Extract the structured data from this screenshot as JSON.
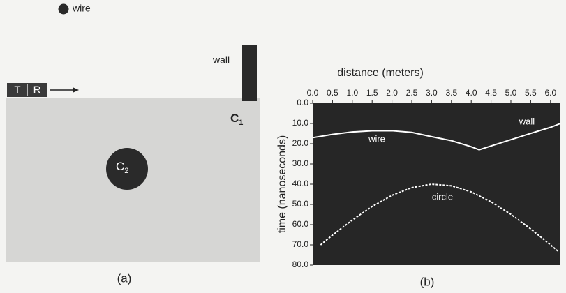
{
  "diagram": {
    "wire": "wire",
    "wall": "wall",
    "transmitter": "T",
    "receiver": "R",
    "c1": "C",
    "c1_sub": "1",
    "c2": "C",
    "c2_sub": "2"
  },
  "captions": [
    "(a)",
    "(b)"
  ],
  "chart_data": {
    "type": "line",
    "xlabel": "distance (meters)",
    "ylabel": "time (nanoseconds)",
    "xlim": [
      0,
      6.25
    ],
    "ylim": [
      80,
      0
    ],
    "xticks": [
      {
        "value": 0,
        "label": "0.0"
      },
      {
        "value": 0.5,
        "label": "0.5"
      },
      {
        "value": 1,
        "label": "1.0"
      },
      {
        "value": 1.5,
        "label": "1.5"
      },
      {
        "value": 2,
        "label": "2.0"
      },
      {
        "value": 2.5,
        "label": "2.5"
      },
      {
        "value": 3,
        "label": "3.0"
      },
      {
        "value": 3.5,
        "label": "3.5"
      },
      {
        "value": 4,
        "label": "4.0"
      },
      {
        "value": 4.5,
        "label": "4.5"
      },
      {
        "value": 5,
        "label": "5.0"
      },
      {
        "value": 5.5,
        "label": "5.5"
      },
      {
        "value": 6,
        "label": "6.0"
      }
    ],
    "yticks": [
      {
        "value": 0,
        "label": "0.0"
      },
      {
        "value": 10,
        "label": "10.0"
      },
      {
        "value": 20,
        "label": "20.0"
      },
      {
        "value": 30,
        "label": "30.0"
      },
      {
        "value": 40,
        "label": "40.0"
      },
      {
        "value": 50,
        "label": "50.0"
      },
      {
        "value": 60,
        "label": "60.0"
      },
      {
        "value": 70,
        "label": "70.0"
      },
      {
        "value": 80,
        "label": "80.0"
      }
    ],
    "series": [
      {
        "name": "wire",
        "color": "#ffffff",
        "x": [
          0,
          0.5,
          1,
          1.5,
          2,
          2.5,
          3,
          3.5,
          4,
          4.2
        ],
        "values": [
          17,
          15.4,
          14.2,
          13.6,
          13.6,
          14.4,
          16.5,
          18.5,
          21.5,
          23
        ]
      },
      {
        "name": "wall",
        "color": "#ffffff",
        "x": [
          4.2,
          4.5,
          5,
          5.5,
          6,
          6.25
        ],
        "values": [
          23,
          21.1,
          18,
          14.9,
          11.9,
          10
        ]
      },
      {
        "name": "circle",
        "color": "#ffffff",
        "x": [
          0.2,
          0.5,
          1,
          1.5,
          2,
          2.5,
          3,
          3.5,
          4,
          4.5,
          5,
          5.5,
          6,
          6.2
        ],
        "values": [
          70,
          65.2,
          57.7,
          51,
          45.5,
          41.7,
          40,
          40.8,
          43.8,
          48.7,
          54.9,
          62.1,
          70,
          73.3
        ]
      }
    ]
  }
}
